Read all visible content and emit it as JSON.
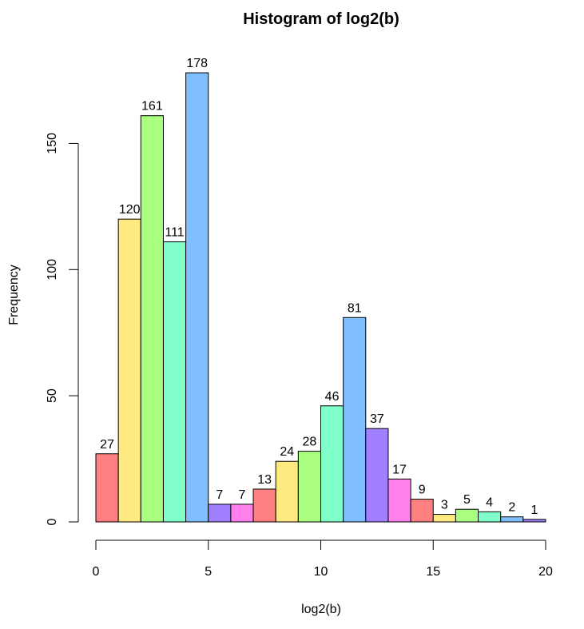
{
  "chart_data": {
    "type": "bar",
    "title": "Histogram of log2(b)",
    "xlabel": "log2(b)",
    "ylabel": "Frequency",
    "bin_width": 1,
    "bin_edges": [
      0,
      1,
      2,
      3,
      4,
      5,
      6,
      7,
      8,
      9,
      10,
      11,
      12,
      13,
      14,
      15,
      16,
      17,
      18,
      19,
      20
    ],
    "values": [
      27,
      120,
      161,
      111,
      178,
      7,
      7,
      13,
      24,
      28,
      46,
      81,
      37,
      17,
      9,
      3,
      5,
      4,
      2,
      1
    ],
    "xlim": [
      0,
      20
    ],
    "ylim": [
      0,
      178
    ],
    "x_ticks": [
      0,
      5,
      10,
      15,
      20
    ],
    "y_ticks": [
      0,
      50,
      100,
      150
    ],
    "bar_colors": [
      "#FF8080",
      "#FFEA80",
      "#AAFF80",
      "#80FFCA",
      "#80BFFF",
      "#A080FF",
      "#FF80EA",
      "#FF8080",
      "#FFEA80",
      "#AAFF80",
      "#80FFCA",
      "#80BFFF",
      "#A080FF",
      "#FF80EA",
      "#FF8080",
      "#FFEA80",
      "#AAFF80",
      "#80FFCA",
      "#80BFFF",
      "#A080FF"
    ],
    "grid": false,
    "legend": "none"
  }
}
